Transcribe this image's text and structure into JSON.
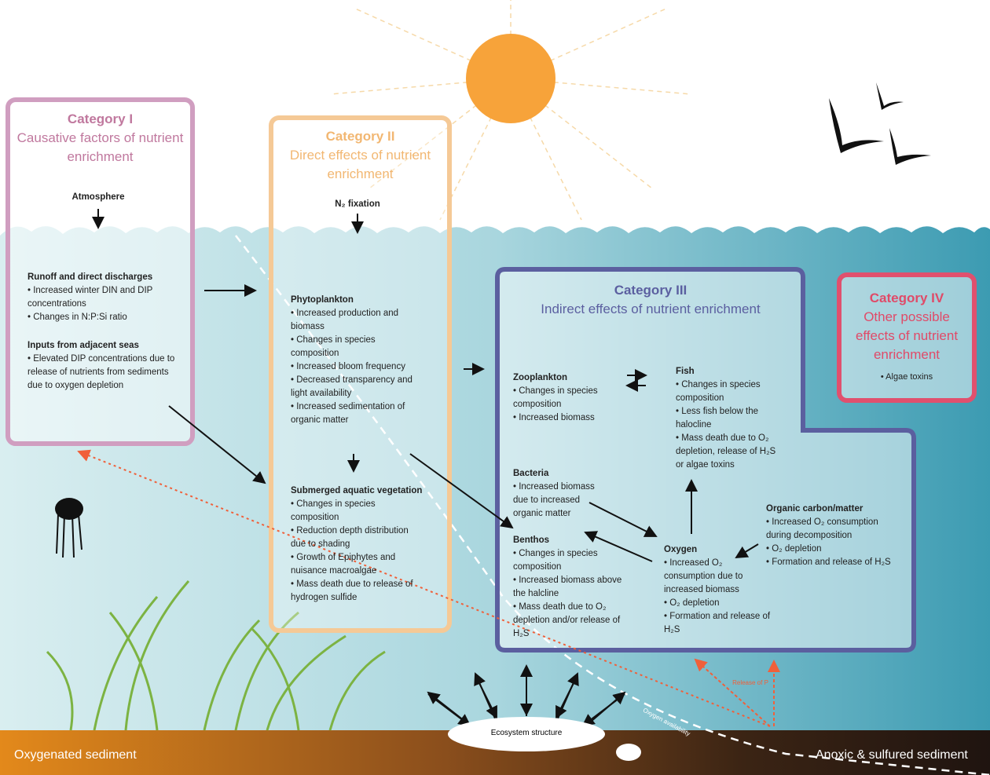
{
  "categories": [
    {
      "title": "Category I",
      "subtitle": "Causative factors of nutrient enrichment"
    },
    {
      "title": "Category II",
      "subtitle": "Direct effects of nutrient enrichment"
    },
    {
      "title": "Category III",
      "subtitle": "Indirect effects of nutrient enrichment"
    },
    {
      "title": "Category IV",
      "subtitle": "Other possible effects of nutrient enrichment",
      "items": [
        "• Algae toxins"
      ]
    }
  ],
  "nodes": [
    {
      "heading": "Atmosphere"
    },
    {
      "heading": "Runoff and direct discharges",
      "items": [
        "• Increased winter DIN and DIP concentrations",
        "• Changes in N:P:Si ratio"
      ]
    },
    {
      "heading": "Inputs from adjacent seas",
      "items": [
        "• Elevated DIP concentrations due to release of nutrients from sediments due to oxygen depletion"
      ]
    },
    {
      "heading": "N₂ fixation"
    },
    {
      "heading": "Phytoplankton",
      "items": [
        "• Increased production and biomass",
        "• Changes in species composition",
        "• Increased bloom frequency",
        "• Decreased transparency and light availability",
        "• Increased sedimentation of organic matter"
      ]
    },
    {
      "heading": "Submerged aquatic vegetation",
      "items": [
        "• Changes in species composition",
        "• Reduction depth distribution due to shading",
        "• Growth of Epiphytes and nuisance macroalgae",
        "• Mass death due to release of hydrogen sulfide"
      ]
    },
    {
      "heading": "Zooplankton",
      "items": [
        "• Changes in species composition",
        "• Increased biomass"
      ]
    },
    {
      "heading": "Fish",
      "items": [
        "• Changes in species composition",
        "• Less fish below the halocline",
        "• Mass death due to O₂ depletion, release of H₂S or algae toxins"
      ]
    },
    {
      "heading": "Bacteria",
      "items": [
        "• Increased biomass due to increased organic matter"
      ]
    },
    {
      "heading": "Benthos",
      "items": [
        "• Changes in species composition",
        "• Increased biomass above the halcline",
        "• Mass death due to O₂ depletion and/or release of H₂S"
      ]
    },
    {
      "heading": "Oxygen",
      "items": [
        "• Increased O₂ consumption due to increased biomass",
        "• O₂ depletion",
        "• Formation and release of H₂S"
      ]
    },
    {
      "heading": "Organic carbon/matter",
      "items": [
        "• Increased O₂ consumption during decomposition",
        "• O₂ depletion",
        "• Formation and release of H₂S"
      ]
    }
  ],
  "labels": {
    "ecosystem": "Ecosystem structure",
    "oxygenated": "Oxygenated sediment",
    "anoxic": "Anoxic & sulfured sediment",
    "release": "Release of P",
    "oxygen_availability": "Oxygen availability"
  }
}
